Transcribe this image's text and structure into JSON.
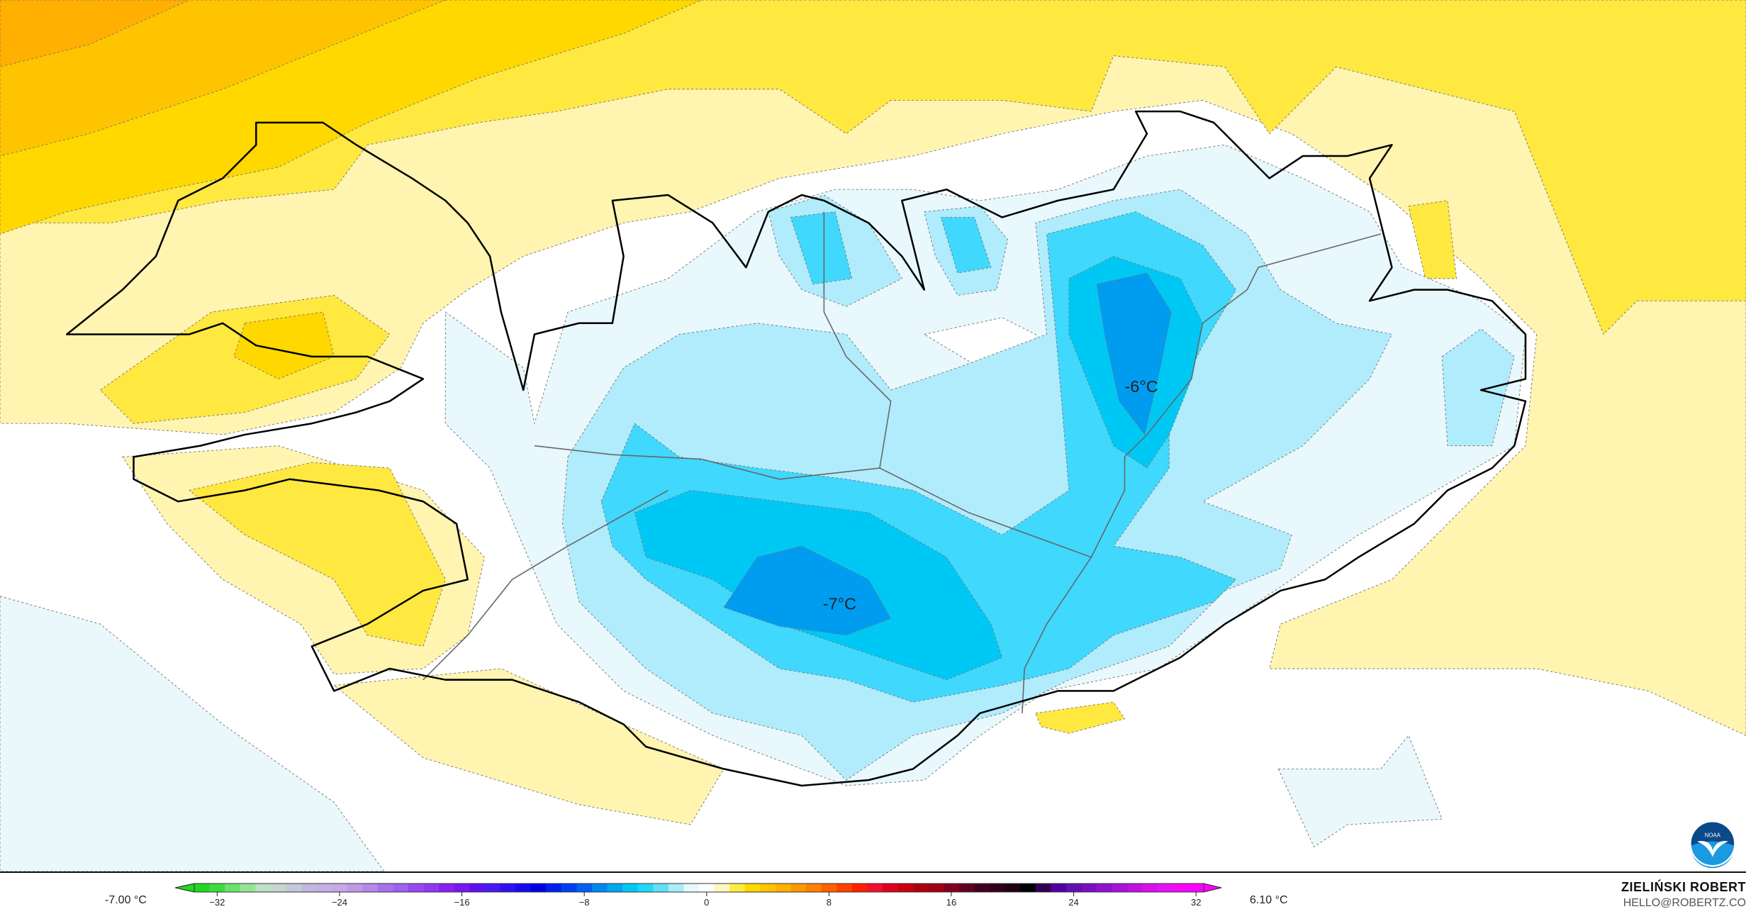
{
  "map": {
    "labels": [
      {
        "text": "-6°C"
      },
      {
        "text": "-7°C"
      }
    ],
    "fill_colors": {
      "orange_dark": "#ffb000",
      "orange": "#ffc400",
      "yellow_dark": "#ffd800",
      "yellow": "#ffe840",
      "yellow_pale": "#fff4b0",
      "white": "#ffffff",
      "blue_pale": "#e8f8fc",
      "blue_light": "#b0ecfc",
      "cyan": "#40d8fc",
      "cyan_dark": "#00c8f4",
      "blue": "#009cf0"
    },
    "coastline_color": "#000000",
    "border_color": "#666666"
  },
  "legend": {
    "min_label": "-7.00 °C",
    "max_label": "6.10 °C",
    "ticks": [
      -32,
      -24,
      -16,
      -8,
      0,
      8,
      16,
      24,
      32
    ],
    "range": [
      -33,
      33
    ],
    "colors": [
      "#20d820",
      "#3ddc3d",
      "#6ee06e",
      "#95e495",
      "#bfe0c8",
      "#c8d4d0",
      "#c4c8dc",
      "#c0b8e0",
      "#c4b0e4",
      "#c8a8e8",
      "#c098e8",
      "#b488ec",
      "#a870ee",
      "#a060f0",
      "#9848f0",
      "#9038f0",
      "#8820f0",
      "#7818f0",
      "#6010f0",
      "#4818f0",
      "#3010f0",
      "#1808f0",
      "#0000e8",
      "#0020f0",
      "#0040f0",
      "#0060f0",
      "#0088f0",
      "#00a8f0",
      "#00c8f4",
      "#20d8f8",
      "#60e0f8",
      "#a8ecf8",
      "#e8f8fc",
      "#ffffff",
      "#fff8c0",
      "#ffec40",
      "#ffd800",
      "#ffc400",
      "#ffb000",
      "#ff9800",
      "#ff8000",
      "#ff6000",
      "#ff4000",
      "#ff2000",
      "#f01030",
      "#e00020",
      "#c80010",
      "#b00010",
      "#a00010",
      "#800020",
      "#600020",
      "#400020",
      "#300018",
      "#200010",
      "#000000",
      "#300050",
      "#5000a0",
      "#6010b0",
      "#7810c0",
      "#9010d0",
      "#a810dc",
      "#c010e4",
      "#d810ec",
      "#e810f4",
      "#f408fa",
      "#ff00ff"
    ]
  },
  "credit": {
    "name": "ZIELIŃSKI ROBERT",
    "email": "HELLO@ROBERTZ.CO"
  },
  "logo": {
    "text": "NOAA"
  }
}
